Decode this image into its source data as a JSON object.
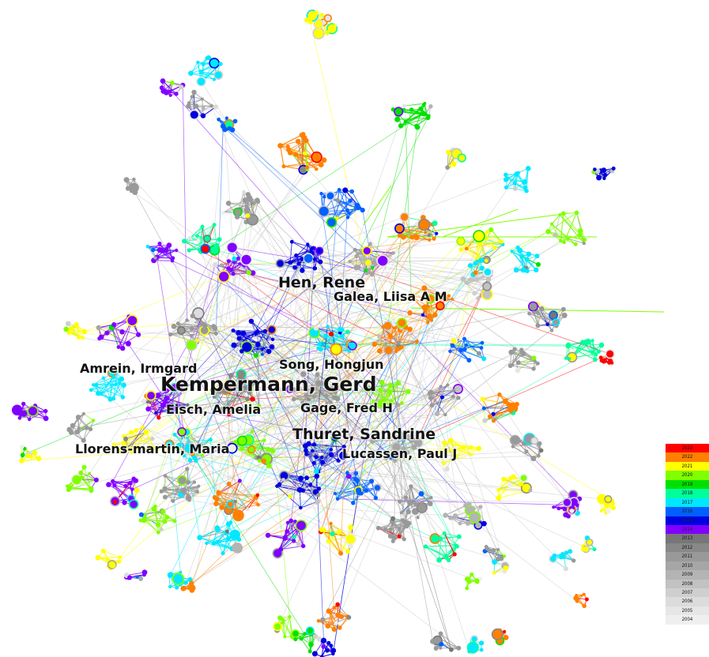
{
  "labels": [
    {
      "id": "hen",
      "text": "Hen, Rene",
      "size": "large"
    },
    {
      "id": "galea",
      "text": "Galea, Liisa A M",
      "size": "medium"
    },
    {
      "id": "amrein",
      "text": "Amrein, Irmgard",
      "size": "medium"
    },
    {
      "id": "song",
      "text": "Song, Hongjun",
      "size": "medium"
    },
    {
      "id": "kempermann",
      "text": "Kempermann, Gerd",
      "size": "xlarge"
    },
    {
      "id": "eisch",
      "text": "Eisch, Amelia",
      "size": "medium"
    },
    {
      "id": "gage",
      "text": "Gage, Fred H",
      "size": "medium"
    },
    {
      "id": "thuret",
      "text": "Thuret, Sandrine",
      "size": "large"
    },
    {
      "id": "llorens",
      "text": "Llorens-martin, Maria",
      "size": "medium"
    },
    {
      "id": "lucassen",
      "text": "Lucassen, Paul J",
      "size": "medium"
    }
  ],
  "legend": [
    {
      "year": "2023",
      "color": "#ff0000"
    },
    {
      "year": "2022",
      "color": "#ff8000"
    },
    {
      "year": "2021",
      "color": "#ffff00"
    },
    {
      "year": "2020",
      "color": "#80ff00"
    },
    {
      "year": "2019",
      "color": "#00e000"
    },
    {
      "year": "2018",
      "color": "#00ff9c"
    },
    {
      "year": "2017",
      "color": "#00e8ff"
    },
    {
      "year": "2016",
      "color": "#0060ff"
    },
    {
      "year": "2015",
      "color": "#0000e0"
    },
    {
      "year": "2014",
      "color": "#8000ff"
    },
    {
      "year": "2013",
      "color": "#777777"
    },
    {
      "year": "2012",
      "color": "#888888"
    },
    {
      "year": "2011",
      "color": "#999999"
    },
    {
      "year": "2010",
      "color": "#a6a6a6"
    },
    {
      "year": "2009",
      "color": "#b4b4b4"
    },
    {
      "year": "2008",
      "color": "#c2c2c2"
    },
    {
      "year": "2007",
      "color": "#cfcfcf"
    },
    {
      "year": "2006",
      "color": "#dcdcdc"
    },
    {
      "year": "2005",
      "color": "#e6e6e6"
    },
    {
      "year": "2004",
      "color": "#efefef"
    }
  ]
}
